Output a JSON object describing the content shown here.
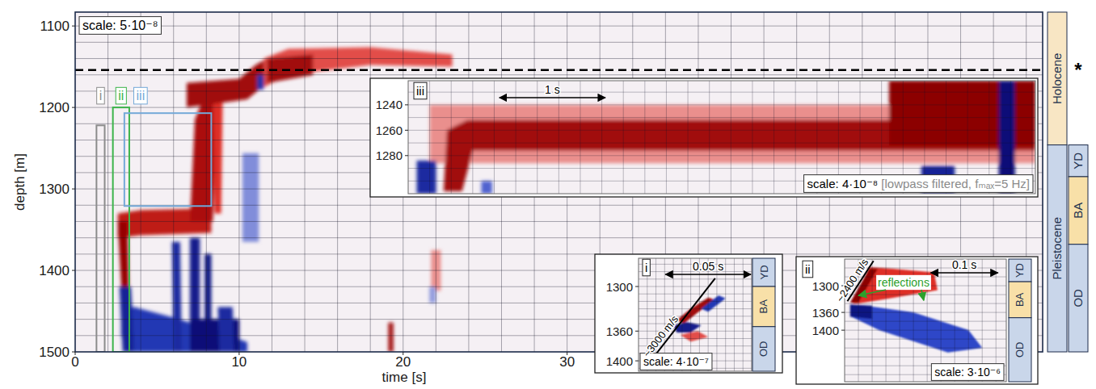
{
  "chart_data": [
    {
      "type": "heatmap",
      "title": "scale: 5·10⁻⁸",
      "x_label": "time [s]",
      "y_label": "depth [m]",
      "xlim": [
        0,
        59
      ],
      "ylim": [
        1083,
        1500
      ],
      "xticks": [
        0,
        10,
        20,
        30
      ],
      "yticks": [
        1100,
        1200,
        1300,
        1400,
        1500
      ],
      "grid": true,
      "xminor": [
        2,
        4,
        6,
        8,
        10,
        12,
        14,
        16,
        18,
        20,
        22,
        24,
        26,
        28,
        30,
        32,
        34,
        36,
        38,
        40,
        42,
        44,
        46,
        48,
        50,
        52,
        54,
        56,
        58
      ],
      "yminor": [
        1100,
        1120,
        1140,
        1160,
        1180,
        1200,
        1220,
        1240,
        1260,
        1280,
        1300,
        1320,
        1340,
        1360,
        1380,
        1400,
        1420,
        1440,
        1460,
        1480
      ],
      "regions": [
        {
          "value": 0.75,
          "t": [
            2.6,
            4,
            8.3,
            8.3,
            4,
            2.6
          ],
          "depth": [
            1330,
            1326,
            1324,
            1354,
            1357,
            1360
          ]
        },
        {
          "value": 0.95,
          "t": [
            2.6,
            3.2,
            3.3,
            2.9
          ],
          "depth": [
            1340,
            1340,
            1450,
            1450
          ]
        },
        {
          "value": -0.7,
          "t": [
            2.8,
            3.6,
            6,
            8,
            10.5,
            10.5,
            3.4,
            2.8
          ],
          "depth": [
            1448,
            1445,
            1458,
            1470,
            1488,
            1500,
            1500,
            1480
          ]
        },
        {
          "value": -0.85,
          "t": [
            2.7,
            3.4,
            3.6,
            2.9
          ],
          "depth": [
            1420,
            1420,
            1500,
            1500
          ]
        },
        {
          "value": 0.85,
          "t": [
            7.0,
            7.3,
            7.8,
            8.6,
            8.4
          ],
          "depth": [
            1340,
            1215,
            1190,
            1190,
            1340
          ]
        },
        {
          "value": 0.6,
          "t": [
            8.4,
            9.0,
            8.9,
            8.5
          ],
          "depth": [
            1185,
            1185,
            1330,
            1330
          ]
        },
        {
          "value": 0.9,
          "t": [
            6.8,
            10,
            11,
            11.7,
            11.7,
            10.5,
            6.8
          ],
          "depth": [
            1170,
            1165,
            1148,
            1140,
            1170,
            1190,
            1200
          ]
        },
        {
          "value": 0.5,
          "t": [
            11.5,
            13,
            18,
            23,
            23,
            18,
            13,
            11.5
          ],
          "depth": [
            1140,
            1128,
            1126,
            1135,
            1150,
            1148,
            1160,
            1175
          ]
        },
        {
          "value": 0.9,
          "t": [
            11.7,
            14.5,
            14.5,
            11.7
          ],
          "depth": [
            1140,
            1135,
            1160,
            1170
          ]
        },
        {
          "value": -0.9,
          "t": [
            7.0,
            7.6,
            7.6,
            7.0
          ],
          "depth": [
            1360,
            1360,
            1500,
            1500
          ]
        },
        {
          "value": -0.95,
          "t": [
            7.9,
            8.3,
            8.3,
            7.9
          ],
          "depth": [
            1380,
            1380,
            1500,
            1500
          ]
        },
        {
          "value": -1,
          "t": [
            7,
            10,
            10,
            7
          ],
          "depth": [
            1460,
            1460,
            1500,
            1500
          ]
        },
        {
          "value": -0.8,
          "t": [
            5.9,
            6.4,
            6.5,
            6.0
          ],
          "depth": [
            1365,
            1365,
            1500,
            1500
          ]
        },
        {
          "value": -0.8,
          "t": [
            8.7,
            9.6,
            9.7,
            8.8
          ],
          "depth": [
            1445,
            1445,
            1500,
            1500
          ]
        },
        {
          "value": -0.35,
          "t": [
            10.2,
            11.2,
            11.2,
            10.2
          ],
          "depth": [
            1256,
            1256,
            1365,
            1365
          ]
        },
        {
          "value": -0.75,
          "t": [
            11.1,
            11.5,
            11.5,
            11.1
          ],
          "depth": [
            1160,
            1160,
            1178,
            1178
          ]
        },
        {
          "value": 0.9,
          "t": [
            19.1,
            19.4,
            19.4,
            19.1
          ],
          "depth": [
            1464,
            1464,
            1500,
            1500
          ]
        },
        {
          "value": 0.3,
          "t": [
            21.7,
            22.3,
            22.3,
            21.7
          ],
          "depth": [
            1375,
            1375,
            1425,
            1425
          ]
        },
        {
          "value": -0.3,
          "t": [
            21.6,
            22.0,
            22.0,
            21.6
          ],
          "depth": [
            1420,
            1420,
            1440,
            1440
          ]
        }
      ],
      "boxes": [
        {
          "label": "i",
          "color": "#8c8c8c",
          "t": [
            1.3,
            1.8
          ],
          "depth": [
            1222,
            1500
          ]
        },
        {
          "label": "ii",
          "color": "#3cb44b",
          "t": [
            2.3,
            3.3
          ],
          "depth": [
            1200,
            1500
          ]
        },
        {
          "label": "iii",
          "color": "#74a9d8",
          "t": [
            3.0,
            8.3
          ],
          "depth": [
            1207,
            1321
          ]
        }
      ],
      "boundary": {
        "label": "*",
        "depth": 1154
      },
      "units": [
        {
          "label": "Holocene",
          "color": "#f8e6c4",
          "depth": [
            1083,
            1246
          ]
        },
        {
          "label": "Pleistocene",
          "color": "#c9d6ea",
          "depth": [
            1246,
            1500
          ]
        }
      ],
      "subunits": [
        {
          "label": "YD",
          "color": "#c9d6ea",
          "depth": [
            1246,
            1285
          ]
        },
        {
          "label": "BA",
          "color": "#f8e0a8",
          "depth": [
            1285,
            1368
          ]
        },
        {
          "label": "OD",
          "color": "#c9d6ea",
          "depth": [
            1368,
            1500
          ]
        }
      ]
    },
    {
      "type": "heatmap",
      "title": "scale: 4·10⁻⁷",
      "label": "i",
      "xlim": [
        0,
        0.065
      ],
      "ylim": [
        1262,
        1414
      ],
      "yticks": [
        1300,
        1360,
        1400
      ],
      "grid": true,
      "xminor": [
        0.005,
        0.01,
        0.015,
        0.02,
        0.025,
        0.03,
        0.035,
        0.04,
        0.045,
        0.05,
        0.055,
        0.06
      ],
      "yminor": [
        1270,
        1280,
        1290,
        1300,
        1310,
        1320,
        1330,
        1340,
        1350,
        1360,
        1370,
        1380,
        1390,
        1400,
        1410
      ],
      "scale_bar": {
        "label": "0.05 s",
        "t": [
          0.015,
          0.065
        ]
      },
      "lines": [
        {
          "label": "~3000 m/s",
          "t": [
            0.004,
            0.044
          ],
          "depth": [
            1409,
            1289
          ]
        }
      ],
      "regions": [
        {
          "value": 0.9,
          "t": [
            0.022,
            0.03,
            0.04,
            0.044,
            0.034,
            0.026
          ],
          "depth": [
            1345,
            1330,
            1315,
            1318,
            1335,
            1350
          ]
        },
        {
          "value": -0.9,
          "t": [
            0.02,
            0.028,
            0.036,
            0.03,
            0.022
          ],
          "depth": [
            1352,
            1348,
            1352,
            1362,
            1362
          ]
        },
        {
          "value": -0.7,
          "t": [
            0.036,
            0.046,
            0.05,
            0.04
          ],
          "depth": [
            1330,
            1312,
            1316,
            1334
          ]
        },
        {
          "value": 0.5,
          "t": [
            0.024,
            0.034,
            0.04,
            0.03
          ],
          "depth": [
            1365,
            1360,
            1368,
            1374
          ]
        }
      ],
      "subunits": [
        {
          "label": "YD",
          "color": "#c9d6ea",
          "depth": [
            1262,
            1300
          ]
        },
        {
          "label": "BA",
          "color": "#f8e0a8",
          "depth": [
            1300,
            1354
          ]
        },
        {
          "label": "OD",
          "color": "#c9d6ea",
          "depth": [
            1354,
            1414
          ]
        }
      ]
    },
    {
      "type": "heatmap",
      "title": "scale: 3·10⁻⁶",
      "label": "ii",
      "xlim": [
        0,
        0.235
      ],
      "ylim": [
        1240,
        1516
      ],
      "yticks": [
        1300,
        1360,
        1400
      ],
      "grid": true,
      "xminor": [
        0.02,
        0.04,
        0.06,
        0.08,
        0.1,
        0.12,
        0.14,
        0.16,
        0.18,
        0.2,
        0.22
      ],
      "yminor": [
        1260,
        1280,
        1300,
        1320,
        1340,
        1360,
        1380,
        1400,
        1420,
        1440,
        1460,
        1480,
        1500
      ],
      "scale_bar": {
        "label": "0.1 s",
        "t": [
          0.124,
          0.224
        ]
      },
      "lines": [
        {
          "label": "~2400 m/s",
          "t": [
            0.004,
            0.042
          ],
          "depth": [
            1335,
            1244
          ]
        }
      ],
      "annotations": [
        {
          "label": "reflections",
          "color": "#2ca02c",
          "t": [
            0.02,
            0.115
          ],
          "depth": [
            1322,
            1333
          ]
        }
      ],
      "regions": [
        {
          "value": 0.6,
          "t": [
            0.012,
            0.036,
            0.07,
            0.13,
            0.135,
            0.06,
            0.02
          ],
          "depth": [
            1340,
            1258,
            1262,
            1270,
            1310,
            1330,
            1340
          ]
        },
        {
          "value": 1,
          "t": [
            0.008,
            0.036,
            0.048,
            0.02
          ],
          "depth": [
            1338,
            1262,
            1262,
            1338
          ]
        },
        {
          "value": -0.6,
          "t": [
            0.01,
            0.03,
            0.1,
            0.18,
            0.2,
            0.15,
            0.05,
            0.01
          ],
          "depth": [
            1345,
            1345,
            1360,
            1400,
            1440,
            1450,
            1400,
            1370
          ]
        },
        {
          "value": -0.95,
          "t": [
            0.008,
            0.04,
            0.04,
            0.008
          ],
          "depth": [
            1342,
            1345,
            1375,
            1370
          ]
        }
      ],
      "subunits": [
        {
          "label": "YD",
          "color": "#c9d6ea",
          "depth": [
            1240,
            1291
          ]
        },
        {
          "label": "BA",
          "color": "#f8e0a8",
          "depth": [
            1291,
            1372
          ]
        },
        {
          "label": "OD",
          "color": "#c9d6ea",
          "depth": [
            1372,
            1516
          ]
        }
      ]
    },
    {
      "type": "heatmap",
      "title": "scale: 4·10⁻⁸",
      "note": "[lowpass filtered, fₘₐₓ=5 Hz]",
      "label": "iii",
      "xlim": [
        0,
        5.83
      ],
      "ylim": [
        1221,
        1310
      ],
      "yticks": [
        1240,
        1260,
        1280
      ],
      "grid": true,
      "xminor": [
        0.2,
        0.4,
        0.6,
        0.8,
        1,
        1.2,
        1.4,
        1.6,
        1.8,
        2,
        2.2,
        2.4,
        2.6,
        2.8,
        3,
        3.2,
        3.4,
        3.6,
        3.8,
        4,
        4.2,
        4.4,
        4.6,
        4.8,
        5,
        5.2,
        5.4,
        5.6,
        5.8
      ],
      "yminor": [
        1230,
        1240,
        1250,
        1260,
        1270,
        1280,
        1290,
        1300
      ],
      "scale_bar": {
        "label": "1 s",
        "t": [
          0.84,
          1.84
        ]
      },
      "regions": [
        {
          "value": 0.3,
          "t": [
            0.2,
            5.83,
            5.83,
            0.2
          ],
          "depth": [
            1240,
            1240,
            1286,
            1286
          ]
        },
        {
          "value": 0.9,
          "t": [
            0.33,
            0.36,
            0.55,
            5.83,
            5.83,
            0.6,
            0.5
          ],
          "depth": [
            1308,
            1260,
            1252,
            1252,
            1276,
            1276,
            1308
          ]
        },
        {
          "value": 1,
          "t": [
            4.47,
            5.83,
            5.83,
            4.47
          ],
          "depth": [
            1221,
            1221,
            1272,
            1272
          ]
        },
        {
          "value": -0.8,
          "t": [
            0.08,
            0.26,
            0.26,
            0.08
          ],
          "depth": [
            1284,
            1284,
            1310,
            1310
          ]
        },
        {
          "value": -0.85,
          "t": [
            4.77,
            5.08,
            5.08,
            4.77
          ],
          "depth": [
            1288,
            1288,
            1310,
            1310
          ]
        },
        {
          "value": -1,
          "t": [
            5.49,
            5.64,
            5.64,
            5.49
          ],
          "depth": [
            1221,
            1221,
            1310,
            1310
          ]
        },
        {
          "value": -0.5,
          "t": [
            0.68,
            0.78,
            0.78,
            0.68
          ],
          "depth": [
            1300,
            1300,
            1310,
            1310
          ]
        }
      ]
    }
  ]
}
